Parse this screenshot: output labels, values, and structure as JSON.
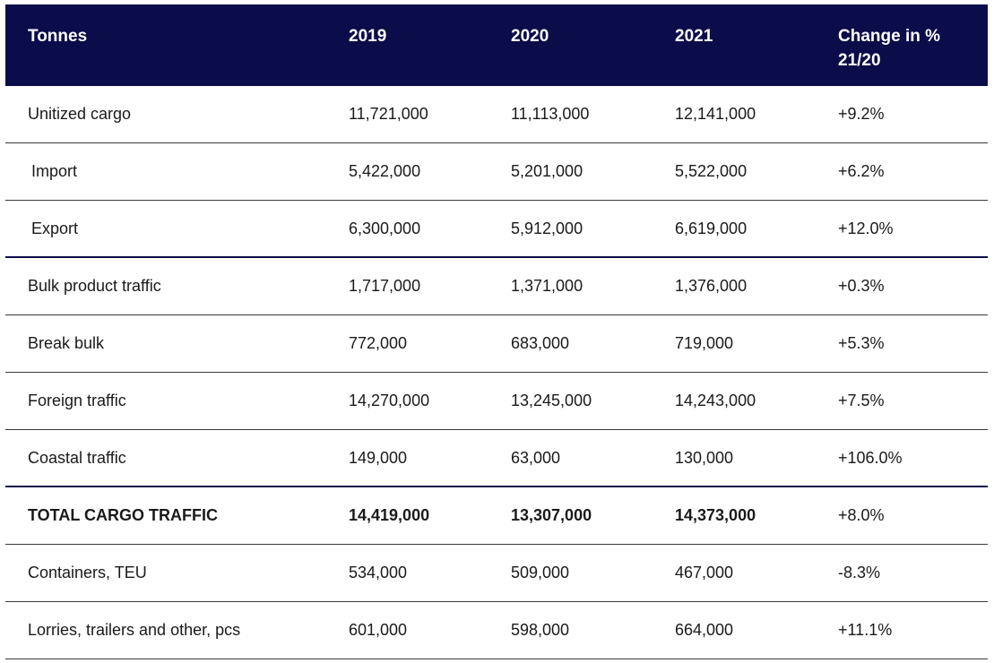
{
  "chart_data": {
    "type": "table",
    "columns": [
      "Tonnes",
      "2019",
      "2020",
      "2021",
      "Change in % 21/20"
    ],
    "header": {
      "label": "Tonnes",
      "y2019": "2019",
      "y2020": "2020",
      "y2021": "2021",
      "change": "Change in % 21/20"
    },
    "rows": [
      {
        "label": "Unitized cargo",
        "y2019": "11,721,000",
        "y2020": "11,113,000",
        "y2021": "12,141,000",
        "change": "+9.2%"
      },
      {
        "label": "Import",
        "y2019": "5,422,000",
        "y2020": "5,201,000",
        "y2021": "5,522,000",
        "change": "+6.2%"
      },
      {
        "label": "Export",
        "y2019": "6,300,000",
        "y2020": "5,912,000",
        "y2021": "6,619,000",
        "change": "+12.0%"
      },
      {
        "label": "Bulk product traffic",
        "y2019": "1,717,000",
        "y2020": "1,371,000",
        "y2021": "1,376,000",
        "change": "+0.3%"
      },
      {
        "label": "Break bulk",
        "y2019": "772,000",
        "y2020": "683,000",
        "y2021": "719,000",
        "change": "+5.3%"
      },
      {
        "label": "Foreign traffic",
        "y2019": "14,270,000",
        "y2020": "13,245,000",
        "y2021": "14,243,000",
        "change": "+7.5%"
      },
      {
        "label": "Coastal traffic",
        "y2019": "149,000",
        "y2020": "63,000",
        "y2021": "130,000",
        "change": "+106.0%"
      },
      {
        "label": "TOTAL CARGO TRAFFIC",
        "y2019": "14,419,000",
        "y2020": "13,307,000",
        "y2021": "14,373,000",
        "change": "+8.0%"
      },
      {
        "label": "Containers, TEU",
        "y2019": "534,000",
        "y2020": "509,000",
        "y2021": "467,000",
        "change": "-8.3%"
      },
      {
        "label": "Lorries, trailers and other, pcs",
        "y2019": "601,000",
        "y2020": "598,000",
        "y2021": "664,000",
        "change": "+11.1%"
      }
    ]
  },
  "colors": {
    "header_background": "#0b0c4a",
    "header_text": "#ffffff",
    "row_divider": "#3a3a3a",
    "section_divider": "#0b0c4a"
  }
}
